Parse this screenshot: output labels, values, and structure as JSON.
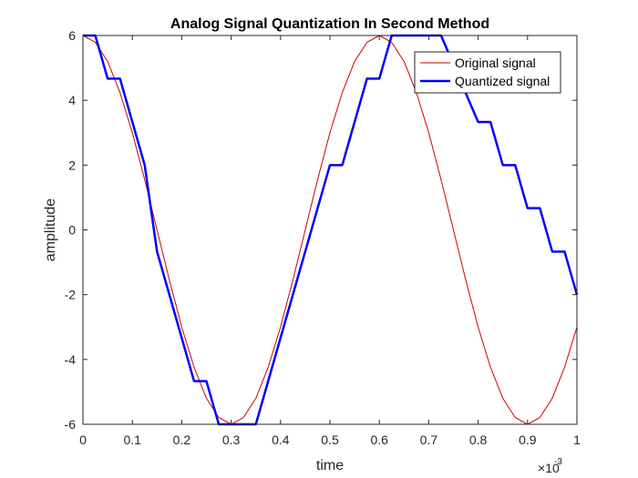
{
  "chart_data": {
    "type": "line",
    "title": "Analog Signal Quantization In Second Method",
    "xlabel": "time",
    "ylabel": "amplitude",
    "x_exponent_base": "×10",
    "x_exponent_power": "-3",
    "xlim": [
      0,
      1
    ],
    "ylim": [
      -6,
      6
    ],
    "xticks": [
      0,
      0.1,
      0.2,
      0.3,
      0.4,
      0.5,
      0.6,
      0.7,
      0.8,
      0.9,
      1
    ],
    "xtick_labels": [
      "0",
      "0.1",
      "0.2",
      "0.3",
      "0.4",
      "0.5",
      "0.6",
      "0.7",
      "0.8",
      "0.9",
      "1"
    ],
    "yticks": [
      -6,
      -4,
      -2,
      0,
      2,
      4,
      6
    ],
    "ytick_labels": [
      "-6",
      "-4",
      "-2",
      "0",
      "2",
      "4",
      "6"
    ],
    "grid": false,
    "legend_position": "top-right",
    "series": [
      {
        "name": "Original signal",
        "color": "#cc0000",
        "style": "thin",
        "x": [
          0,
          0.025,
          0.05,
          0.075,
          0.1,
          0.125,
          0.15,
          0.175,
          0.2,
          0.225,
          0.25,
          0.275,
          0.3,
          0.325,
          0.35,
          0.375,
          0.4,
          0.425,
          0.45,
          0.475,
          0.5,
          0.525,
          0.55,
          0.575,
          0.6,
          0.625,
          0.65,
          0.675,
          0.7,
          0.725,
          0.75,
          0.775,
          0.8,
          0.825,
          0.85,
          0.875,
          0.9,
          0.925,
          0.95,
          0.975,
          1
        ],
        "y": [
          6,
          5.79,
          5.2,
          4.24,
          3,
          1.55,
          0,
          -1.55,
          -3,
          -4.24,
          -5.2,
          -5.79,
          -6,
          -5.79,
          -5.2,
          -4.24,
          -3,
          -1.55,
          0,
          1.55,
          3,
          4.24,
          5.2,
          5.79,
          6,
          5.79,
          5.2,
          4.24,
          3,
          1.55,
          0,
          -1.55,
          -3,
          -4.24,
          -5.2,
          -5.79,
          -6,
          -5.79,
          -5.2,
          -4.24,
          -3
        ]
      },
      {
        "name": "Quantized signal",
        "color": "#0000ff",
        "style": "thick",
        "x": [
          0,
          0.025,
          0.05,
          0.075,
          0.125,
          0.15,
          0.225,
          0.25,
          0.275,
          0.35,
          0.5,
          0.525,
          0.575,
          0.6,
          0.625,
          0.725,
          0.8,
          0.825,
          0.85,
          0.875,
          0.9,
          0.925,
          0.95,
          0.975,
          1
        ],
        "y": [
          6,
          6,
          4.67,
          4.67,
          2,
          -0.67,
          -4.67,
          -4.67,
          -6,
          -6,
          2,
          2,
          4.67,
          4.67,
          6,
          6,
          3.33,
          3.33,
          2,
          2,
          0.67,
          0.67,
          -0.67,
          -0.67,
          -2
        ]
      }
    ]
  }
}
